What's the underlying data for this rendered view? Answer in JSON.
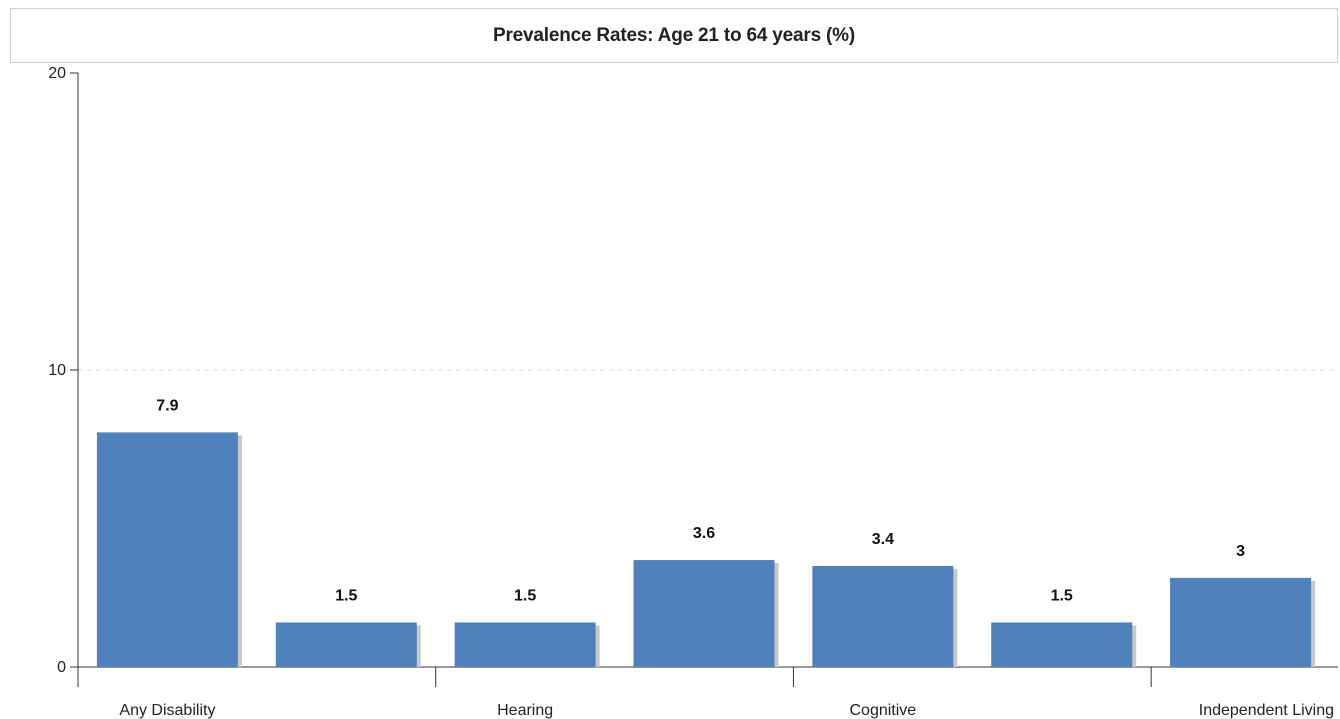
{
  "chart_data": {
    "type": "bar",
    "title": "Prevalence Rates: Age 21 to 64 years (%)",
    "xlabel": "",
    "ylabel": "",
    "ylim": [
      0,
      20
    ],
    "y_ticks": [
      "0",
      "10",
      "20"
    ],
    "grid": {
      "y": true,
      "style": "dashed",
      "at": [
        10
      ]
    },
    "categories": [
      "Any Disability",
      "",
      "Hearing",
      "",
      "Cognitive",
      "",
      "Independent Living"
    ],
    "values": [
      7.9,
      1.5,
      1.5,
      3.6,
      3.4,
      1.5,
      3.0
    ],
    "data_labels": [
      "7.9",
      "1.5",
      "1.5",
      "3.6",
      "3.4",
      "1.5",
      "3"
    ],
    "bar_color": "#4f81bd",
    "shadow_color": "#c8c8c8"
  }
}
